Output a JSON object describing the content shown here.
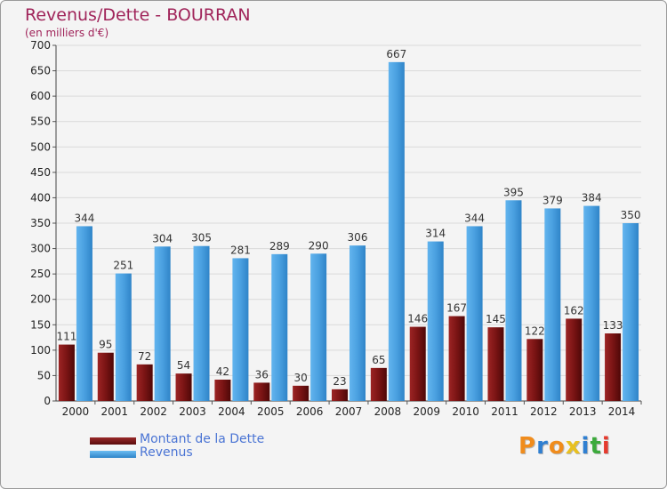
{
  "chart_data": {
    "type": "bar",
    "title": "Revenus/Dette - BOURRAN",
    "subtitle": "(en milliers d'€)",
    "xlabel": "",
    "ylabel": "",
    "ylim": [
      0,
      700
    ],
    "yticks": [
      "0",
      "50",
      "100",
      "150",
      "200",
      "250",
      "300",
      "350",
      "400",
      "450",
      "500",
      "550",
      "600",
      "650",
      "700"
    ],
    "grid": true,
    "categories": [
      "2000",
      "2001",
      "2002",
      "2003",
      "2004",
      "2005",
      "2006",
      "2007",
      "2008",
      "2009",
      "2010",
      "2011",
      "2012",
      "2013",
      "2014"
    ],
    "series": [
      {
        "name": "Montant de la Dette",
        "color": "#8a1a1a",
        "values": [
          111,
          95,
          72,
          54,
          42,
          36,
          30,
          23,
          65,
          146,
          167,
          145,
          122,
          162,
          133
        ]
      },
      {
        "name": "Revenus",
        "color": "#4fa3e0",
        "values": [
          344,
          251,
          304,
          305,
          281,
          289,
          290,
          306,
          667,
          314,
          344,
          395,
          379,
          384,
          350
        ]
      }
    ],
    "legend_position": "bottom-left"
  },
  "logo": {
    "text": "Proxiti",
    "letters": [
      "P",
      "r",
      "o",
      "x",
      "i",
      "t",
      "i"
    ],
    "colors": [
      "#f08c1c",
      "#2f7fd1",
      "#f08c1c",
      "#e8c020",
      "#2f7fd1",
      "#3caa3c",
      "#e53a2e"
    ]
  }
}
